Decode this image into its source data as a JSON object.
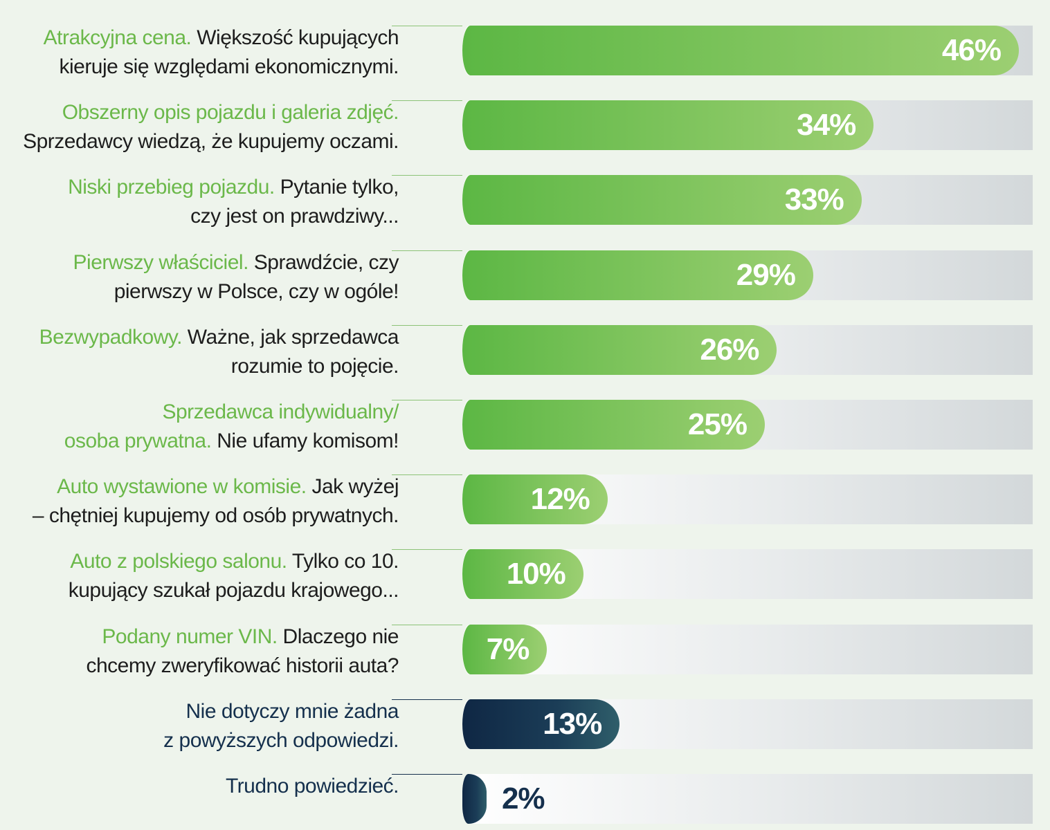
{
  "chart_data": {
    "type": "bar",
    "orientation": "horizontal",
    "xlim": [
      0,
      46
    ],
    "categories": [
      {
        "highlight": "Atrakcyjna cena.",
        "line1_rest": " Większość kupujących",
        "line2": "kieruje się względami ekonomicznymi."
      },
      {
        "highlight": "Obszerny opis pojazdu i galeria zdjęć.",
        "line1_rest": "",
        "line2": "Sprzedawcy wiedzą, że kupujemy oczami."
      },
      {
        "highlight": "Niski przebieg pojazdu.",
        "line1_rest": " Pytanie tylko,",
        "line2": "czy jest on prawdziwy..."
      },
      {
        "highlight": "Pierwszy właściciel.",
        "line1_rest": " Sprawdźcie, czy",
        "line2": "pierwszy w Polsce, czy w ogóle!"
      },
      {
        "highlight": "Bezwypadkowy.",
        "line1_rest": " Ważne, jak sprzedawca",
        "line2": "rozumie to pojęcie."
      },
      {
        "highlight": "Sprzedawca indywidualny/",
        "line1_rest": "",
        "line2_highlight": "osoba prywatna.",
        "line2": " Nie ufamy komisom!"
      },
      {
        "highlight": "Auto wystawione w komisie.",
        "line1_rest": " Jak wyżej",
        "line2": "– chętniej kupujemy od osób prywatnych."
      },
      {
        "highlight": "Auto z polskiego salonu.",
        "line1_rest": " Tylko co 10.",
        "line2": "kupujący szukał pojazdu krajowego..."
      },
      {
        "highlight": "Podany numer VIN.",
        "line1_rest": " Dlaczego nie",
        "line2": "chcemy zweryfikować historii auta?"
      },
      {
        "highlight": "Nie dotyczy mnie żadna",
        "line1_rest": "",
        "line2": "z powyższych odpowiedzi.",
        "style": "dark"
      },
      {
        "highlight": "Trudno powiedzieć.",
        "line1_rest": "",
        "line2": "",
        "style": "dark"
      }
    ],
    "values": [
      46,
      34,
      33,
      29,
      26,
      25,
      12,
      10,
      7,
      13,
      2
    ],
    "value_labels": [
      "46%",
      "34%",
      "33%",
      "29%",
      "26%",
      "25%",
      "12%",
      "10%",
      "7%",
      "13%",
      "2%"
    ],
    "colors": {
      "bar_green_start": "#5cb744",
      "bar_green_end": "#9ccf72",
      "bar_dark_start": "#0f2744",
      "bar_dark_end": "#2f5e6a",
      "highlight_text": "#6bb84a",
      "dark_text": "#15304d",
      "background": "#eef4ec"
    }
  }
}
